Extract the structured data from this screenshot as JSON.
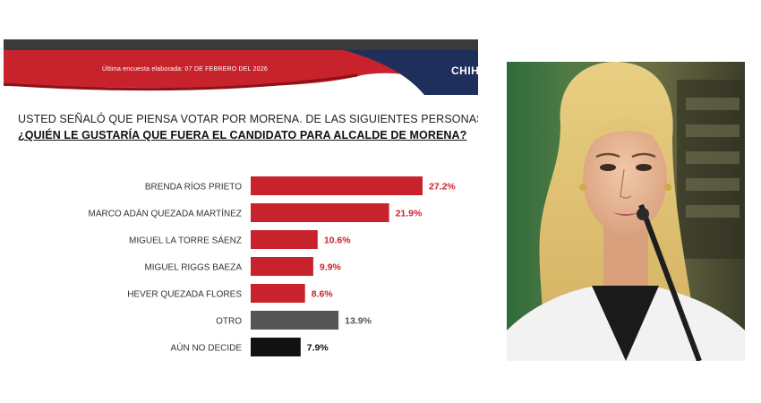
{
  "header": {
    "survey_date": "Última encuesta elaborada: 07 DE FEBRERO DEL 2026",
    "brand_partial": "CHIH"
  },
  "question": {
    "line1": "USTED SEÑALÓ QUE PIENSA VOTAR POR MORENA. DE LAS SIGUIENTES PERSONAS,",
    "line2": "¿QUIÉN LE GUSTARÍA QUE FUERA EL CANDIDATO PARA ALCALDE DE MORENA?"
  },
  "colors": {
    "red": "#c8232c",
    "gray": "#555555",
    "black": "#111111",
    "navy": "#1f2f5c"
  },
  "chart_data": {
    "type": "bar",
    "orientation": "horizontal",
    "categories": [
      "BRENDA RÍOS PRIETO",
      "MARCO ADÁN QUEZADA MARTÍNEZ",
      "MIGUEL LA TORRE SÁENZ",
      "MIGUEL RIGGS BAEZA",
      "HEVER QUEZADA FLORES",
      "OTRO",
      "AÚN NO DECIDE"
    ],
    "values": [
      27.2,
      21.9,
      10.6,
      9.9,
      8.6,
      13.9,
      7.9
    ],
    "value_labels": [
      "27.2%",
      "21.9%",
      "10.6%",
      "9.9%",
      "8.6%",
      "13.9%",
      "7.9%"
    ],
    "bar_colors": [
      "#c8232c",
      "#c8232c",
      "#c8232c",
      "#c8232c",
      "#c8232c",
      "#555555",
      "#111111"
    ],
    "label_colors": [
      "#c8232c",
      "#c8232c",
      "#c8232c",
      "#c8232c",
      "#c8232c",
      "#555555",
      "#111111"
    ],
    "xlim": [
      0,
      27.2
    ],
    "grid": false,
    "legend": false
  }
}
